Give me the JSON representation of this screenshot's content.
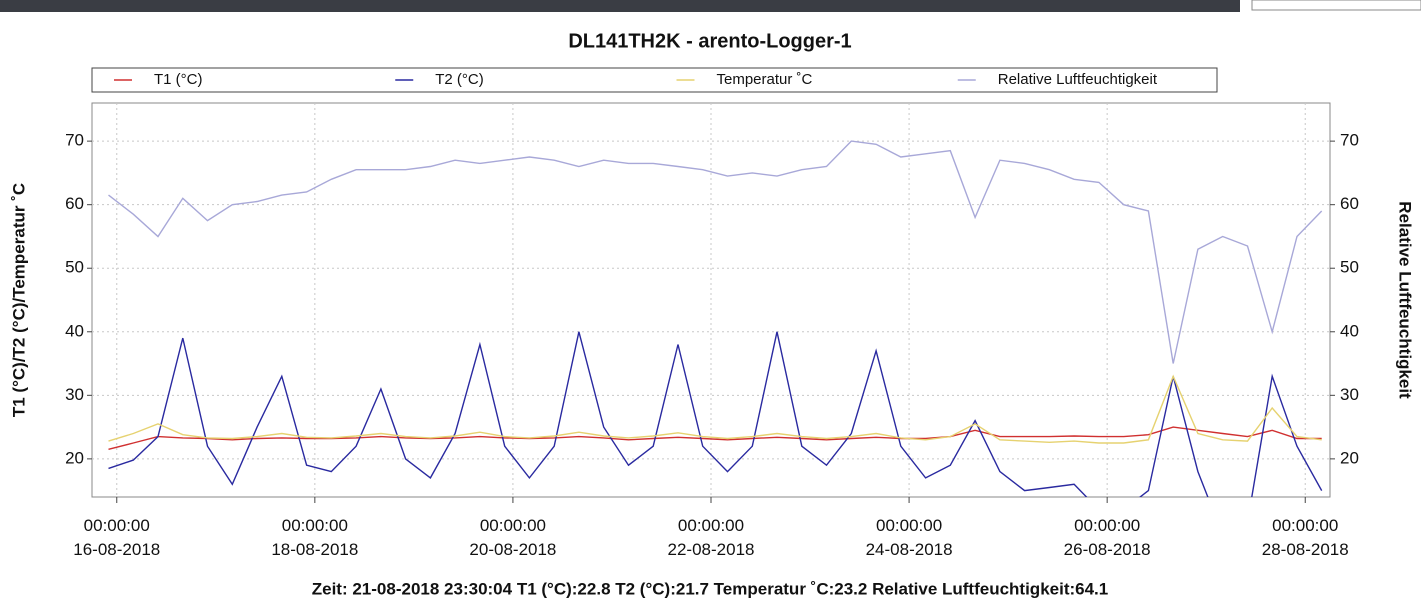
{
  "chart_data": {
    "type": "line",
    "title": "DL141TH2K - arento-Logger-1",
    "y_label": "T1 (°C)/T2 (°C)/Temperatur ˚C",
    "y2_label": "Relative Luftfeuchtigkeit",
    "status": "Zeit: 21-08-2018 23:30:04 T1 (°C):22.8 T2 (°C):21.7 Temperatur ˚C:23.2 Relative Luftfeuchtigkeit:64.1",
    "grid": true,
    "legend": "top",
    "xlim": [
      "2018-08-15 18:00:00",
      "2018-08-28 06:00:00"
    ],
    "xticks": [
      {
        "value": "2018-08-16 00:00:00",
        "label": "00:00:00\n16-08-2018"
      },
      {
        "value": "2018-08-18 00:00:00",
        "label": "00:00:00\n18-08-2018"
      },
      {
        "value": "2018-08-20 00:00:00",
        "label": "00:00:00\n20-08-2018"
      },
      {
        "value": "2018-08-22 00:00:00",
        "label": "00:00:00\n22-08-2018"
      },
      {
        "value": "2018-08-24 00:00:00",
        "label": "00:00:00\n24-08-2018"
      },
      {
        "value": "2018-08-26 00:00:00",
        "label": "00:00:00\n26-08-2018"
      },
      {
        "value": "2018-08-28 00:00:00",
        "label": "00:00:00\n28-08-2018"
      }
    ],
    "ylim": [
      14,
      76
    ],
    "yticks": [
      20,
      30,
      40,
      50,
      60,
      70
    ],
    "y2lim": [
      14,
      76
    ],
    "y2ticks": [
      20,
      30,
      40,
      50,
      60,
      70
    ],
    "x": [
      "2018-08-15 22:00:00",
      "2018-08-16 04:00:00",
      "2018-08-16 10:00:00",
      "2018-08-16 16:00:00",
      "2018-08-16 22:00:00",
      "2018-08-17 04:00:00",
      "2018-08-17 10:00:00",
      "2018-08-17 16:00:00",
      "2018-08-17 22:00:00",
      "2018-08-18 04:00:00",
      "2018-08-18 10:00:00",
      "2018-08-18 16:00:00",
      "2018-08-18 22:00:00",
      "2018-08-19 04:00:00",
      "2018-08-19 10:00:00",
      "2018-08-19 16:00:00",
      "2018-08-19 22:00:00",
      "2018-08-20 04:00:00",
      "2018-08-20 10:00:00",
      "2018-08-20 16:00:00",
      "2018-08-20 22:00:00",
      "2018-08-21 04:00:00",
      "2018-08-21 10:00:00",
      "2018-08-21 16:00:00",
      "2018-08-21 22:00:00",
      "2018-08-22 04:00:00",
      "2018-08-22 10:00:00",
      "2018-08-22 16:00:00",
      "2018-08-22 22:00:00",
      "2018-08-23 04:00:00",
      "2018-08-23 10:00:00",
      "2018-08-23 16:00:00",
      "2018-08-23 22:00:00",
      "2018-08-24 04:00:00",
      "2018-08-24 10:00:00",
      "2018-08-24 16:00:00",
      "2018-08-24 22:00:00",
      "2018-08-25 04:00:00",
      "2018-08-25 10:00:00",
      "2018-08-25 16:00:00",
      "2018-08-25 22:00:00",
      "2018-08-26 04:00:00",
      "2018-08-26 10:00:00",
      "2018-08-26 16:00:00",
      "2018-08-26 22:00:00",
      "2018-08-27 04:00:00",
      "2018-08-27 10:00:00",
      "2018-08-27 16:00:00",
      "2018-08-27 22:00:00",
      "2018-08-28 04:00:00"
    ],
    "series": [
      {
        "name": "T1 (°C)",
        "color": "#d03030",
        "values": [
          21.5,
          22.5,
          23.5,
          23.3,
          23.2,
          23,
          23.2,
          23.3,
          23.2,
          23.2,
          23.3,
          23.5,
          23.3,
          23.2,
          23.3,
          23.5,
          23.3,
          23.2,
          23.3,
          23.5,
          23.3,
          23,
          23.2,
          23.4,
          23.2,
          23,
          23.2,
          23.4,
          23.2,
          23,
          23.2,
          23.4,
          23.2,
          23.2,
          23.5,
          24.5,
          23.5,
          23.5,
          23.5,
          23.6,
          23.5,
          23.5,
          23.8,
          25,
          24.5,
          24,
          23.5,
          24.5,
          23.2,
          23.2
        ]
      },
      {
        "name": "T2 (°C)",
        "color": "#2a2aa0",
        "values": [
          18.5,
          19.8,
          23.5,
          39,
          22,
          16,
          25,
          33,
          19,
          18,
          22,
          31,
          20,
          17,
          24,
          38,
          22,
          17,
          22,
          40,
          25,
          19,
          22,
          38,
          22,
          18,
          22,
          40,
          22,
          19,
          24,
          37,
          22,
          17,
          19,
          26,
          18,
          15,
          15.5,
          16,
          12,
          12,
          15,
          33,
          18,
          8,
          10,
          33,
          22,
          15
        ]
      },
      {
        "name": "Temperatur ˚C",
        "color": "#e6d270",
        "values": [
          22.8,
          24,
          25.5,
          23.8,
          23.3,
          23.2,
          23.5,
          24,
          23.4,
          23.3,
          23.6,
          24,
          23.5,
          23.3,
          23.6,
          24.2,
          23.5,
          23.3,
          23.6,
          24.2,
          23.6,
          23.3,
          23.6,
          24.1,
          23.5,
          23.2,
          23.5,
          24,
          23.5,
          23.2,
          23.5,
          24,
          23.3,
          23,
          23.5,
          25.5,
          23,
          22.8,
          22.6,
          22.8,
          22.5,
          22.5,
          23,
          33,
          24,
          23,
          22.8,
          28,
          23.5,
          23
        ]
      },
      {
        "name": "Relative Luftfeuchtigkeit",
        "color": "#a8a8d8",
        "axis": "y2",
        "values": [
          61.5,
          58.5,
          55,
          61,
          57.5,
          60,
          60.5,
          61.5,
          62,
          64,
          65.5,
          65.5,
          65.5,
          66,
          67,
          66.5,
          67,
          67.5,
          67,
          66,
          67,
          66.5,
          66.5,
          66,
          65.5,
          64.5,
          65,
          64.5,
          65.5,
          66,
          70,
          69.5,
          67.5,
          68,
          68.5,
          58,
          67,
          66.5,
          65.5,
          64,
          63.5,
          60,
          59,
          35,
          53,
          55,
          53.5,
          40,
          55,
          59
        ]
      }
    ]
  }
}
